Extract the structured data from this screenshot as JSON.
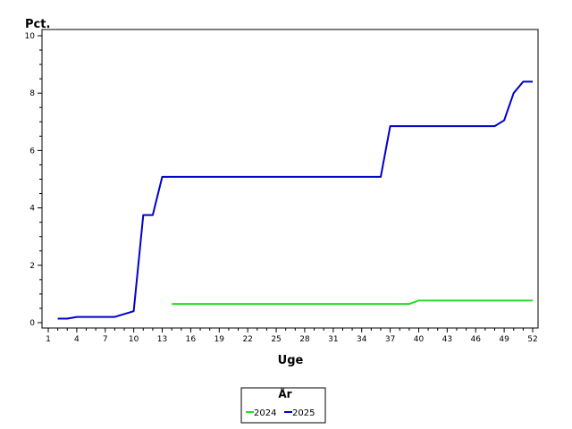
{
  "chart_data": {
    "type": "line",
    "ylabel": "Pct.",
    "xlabel": "Uge",
    "xlim": [
      1,
      52
    ],
    "ylim": [
      0,
      10
    ],
    "x_ticks": [
      1,
      4,
      7,
      10,
      13,
      16,
      19,
      22,
      25,
      28,
      31,
      34,
      37,
      40,
      43,
      46,
      49,
      52
    ],
    "y_ticks": [
      0,
      2,
      4,
      6,
      8,
      10
    ],
    "grid": false,
    "legend": {
      "title": "År",
      "placement": "bottom-center"
    },
    "series": [
      {
        "name": "2024",
        "color": "#22dd22",
        "points": [
          [
            14,
            0.65
          ],
          [
            39,
            0.65
          ],
          [
            40,
            0.77
          ],
          [
            52,
            0.77
          ]
        ]
      },
      {
        "name": "2025",
        "color": "#0000cc",
        "points": [
          [
            2,
            0.14
          ],
          [
            3,
            0.14
          ],
          [
            4,
            0.2
          ],
          [
            8,
            0.2
          ],
          [
            10,
            0.4
          ],
          [
            11,
            3.75
          ],
          [
            12,
            3.75
          ],
          [
            13,
            5.08
          ],
          [
            36,
            5.08
          ],
          [
            37,
            6.85
          ],
          [
            48,
            6.85
          ],
          [
            49,
            7.05
          ],
          [
            50,
            8.0
          ],
          [
            51,
            8.4
          ],
          [
            52,
            8.4
          ]
        ]
      }
    ]
  }
}
